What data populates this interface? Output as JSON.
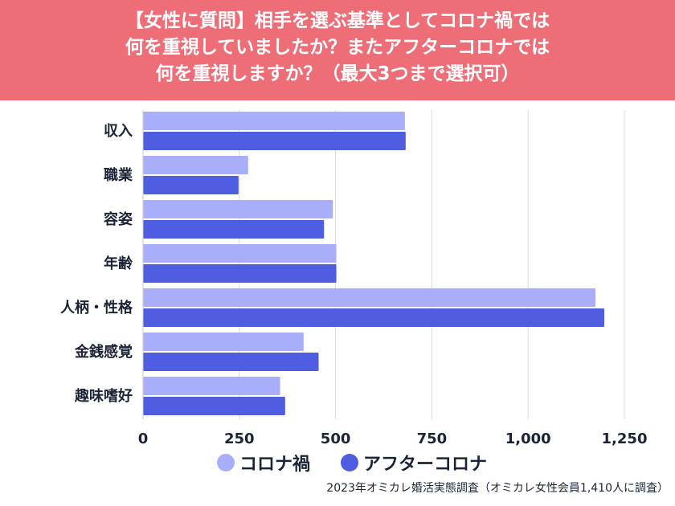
{
  "chart_data": {
    "type": "bar",
    "orientation": "horizontal",
    "title_lines": [
      "【女性に質問】相手を選ぶ基準としてコロナ禍では",
      "何を重視していましたか？またアフターコロナでは",
      "何を重視しますか？（最大3つまで選択可）"
    ],
    "categories": [
      "収入",
      "職業",
      "容姿",
      "年齢",
      "人柄・性格",
      "金銭感覚",
      "趣味嗜好"
    ],
    "series": [
      {
        "name": "コロナ禍",
        "color": "#a9aefb",
        "values": [
          680,
          273,
          493,
          502,
          1175,
          417,
          356
        ]
      },
      {
        "name": "アフターコロナ",
        "color": "#4f5ee0",
        "values": [
          682,
          248,
          470,
          502,
          1198,
          456,
          369
        ]
      }
    ],
    "xlim": [
      0,
      1250
    ],
    "ticks": [
      "0",
      "250",
      "500",
      "750",
      "1,000",
      "1,250"
    ],
    "tick_values": [
      0,
      250,
      500,
      750,
      1000,
      1250
    ],
    "grid": true,
    "legend_position": "bottom",
    "source": "2023年オミカレ婚活実態調査（オミカレ女性会員1,410人に調査）"
  },
  "colors": {
    "header_bg": "#ee6e78",
    "grid": "#d9dbe0",
    "text": "#1b2436"
  }
}
